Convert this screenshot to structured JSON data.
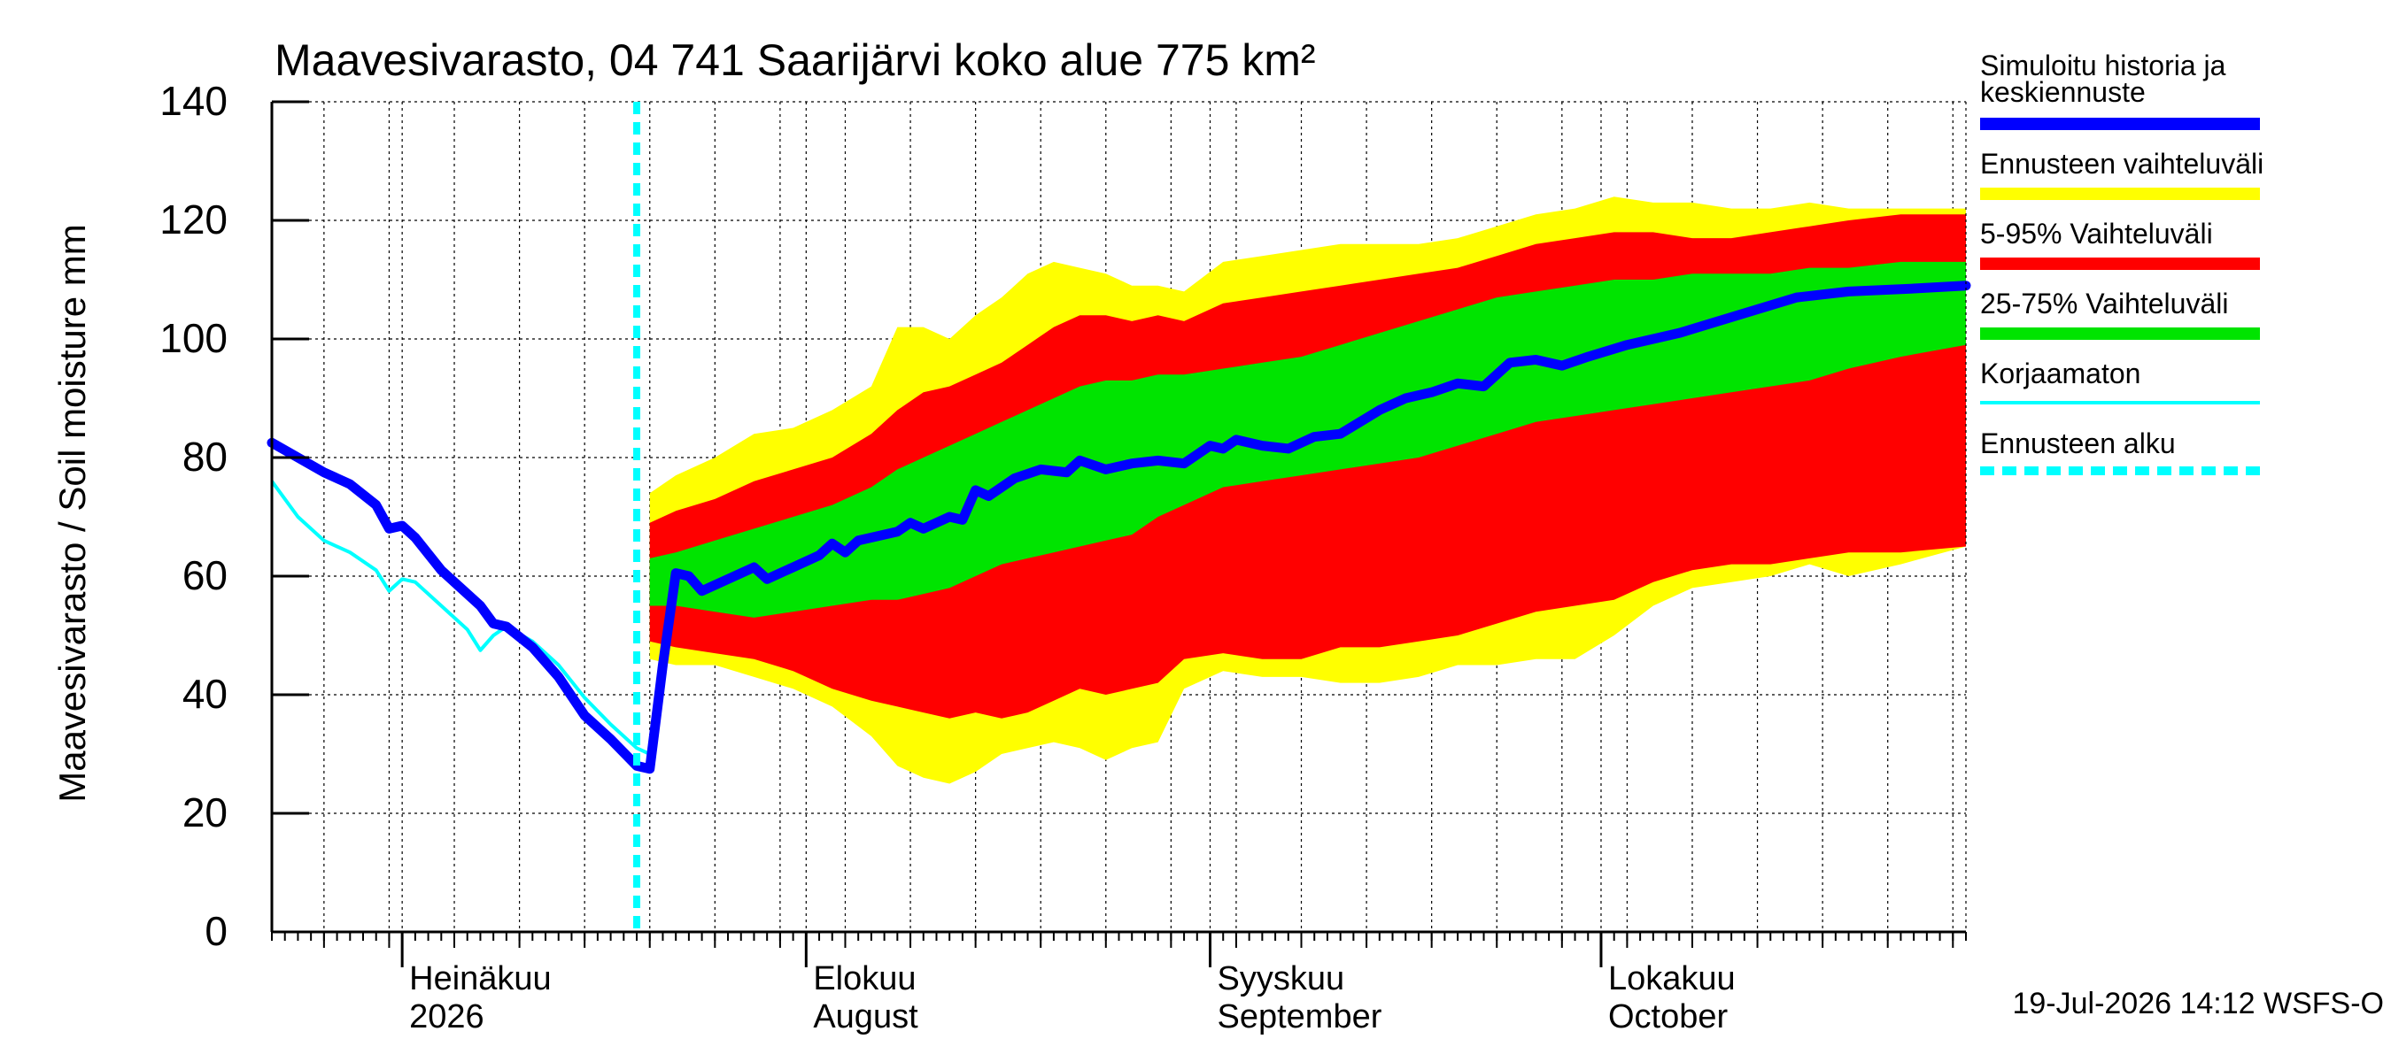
{
  "chart_data": {
    "type": "area",
    "title": "Maavesivarasto, 04 741 Saarijärvi koko alue 775 km²",
    "ylabel": "Maavesivarasto / Soil moisture   mm",
    "ylim": [
      0,
      140
    ],
    "yticks": [
      0,
      20,
      40,
      60,
      80,
      100,
      120,
      140
    ],
    "xlim": [
      "2026-06-21",
      "2026-10-29"
    ],
    "grid": true,
    "forecast_start": "2026-07-19",
    "month_labels": [
      {
        "date": "2026-07-01",
        "line1": "Heinäkuu",
        "line2": "2026"
      },
      {
        "date": "2026-08-01",
        "line1": "Elokuu",
        "line2": "August"
      },
      {
        "date": "2026-09-01",
        "line1": "Syyskuu",
        "line2": "September"
      },
      {
        "date": "2026-10-01",
        "line1": "Lokakuu",
        "line2": "October"
      }
    ],
    "footer": "19-Jul-2026 14:12 WSFS-O",
    "legend": {
      "placement": "right",
      "items": [
        {
          "label": "Simuloitu historia ja keskiennuste",
          "color": "#0000ff",
          "style": "thick"
        },
        {
          "label": "Ennusteen vaihteluväli",
          "color": "#ffff00",
          "style": "thick"
        },
        {
          "label": "5-95% Vaihteluväli",
          "color": "#ff0000",
          "style": "thick"
        },
        {
          "label": "25-75% Vaihteluväli",
          "color": "#00e400",
          "style": "thick"
        },
        {
          "label": "Korjaamaton",
          "color": "#00ffff",
          "style": "thin"
        },
        {
          "label": "Ennusteen alku",
          "color": "#00ffff",
          "style": "dashed"
        }
      ]
    },
    "series": [
      {
        "name": "Simuloitu historia ja keskiennuste",
        "color": "#0000ff",
        "points": [
          [
            "2026-06-21",
            82.5
          ],
          [
            "2026-06-23",
            80
          ],
          [
            "2026-06-25",
            77.5
          ],
          [
            "2026-06-27",
            75.5
          ],
          [
            "2026-06-29",
            72
          ],
          [
            "2026-06-30",
            68
          ],
          [
            "2026-07-01",
            68.5
          ],
          [
            "2026-07-02",
            66.5
          ],
          [
            "2026-07-04",
            61
          ],
          [
            "2026-07-07",
            55
          ],
          [
            "2026-07-08",
            52
          ],
          [
            "2026-07-09",
            51.5
          ],
          [
            "2026-07-11",
            48
          ],
          [
            "2026-07-13",
            43
          ],
          [
            "2026-07-15",
            36.5
          ],
          [
            "2026-07-17",
            32.5
          ],
          [
            "2026-07-19",
            28
          ],
          [
            "2026-07-20",
            27.5
          ],
          [
            "2026-07-21",
            45
          ],
          [
            "2026-07-22",
            60.5
          ],
          [
            "2026-07-23",
            60
          ],
          [
            "2026-07-24",
            57.5
          ],
          [
            "2026-07-26",
            59.5
          ],
          [
            "2026-07-28",
            61.5
          ],
          [
            "2026-07-29",
            59.5
          ],
          [
            "2026-07-31",
            61.5
          ],
          [
            "2026-08-02",
            63.5
          ],
          [
            "2026-08-03",
            65.5
          ],
          [
            "2026-08-04",
            64
          ],
          [
            "2026-08-05",
            66
          ],
          [
            "2026-08-08",
            67.5
          ],
          [
            "2026-08-09",
            69
          ],
          [
            "2026-08-10",
            68
          ],
          [
            "2026-08-12",
            70
          ],
          [
            "2026-08-13",
            69.5
          ],
          [
            "2026-08-14",
            74.5
          ],
          [
            "2026-08-15",
            73.5
          ],
          [
            "2026-08-17",
            76.5
          ],
          [
            "2026-08-19",
            78
          ],
          [
            "2026-08-21",
            77.5
          ],
          [
            "2026-08-22",
            79.5
          ],
          [
            "2026-08-24",
            78
          ],
          [
            "2026-08-26",
            79
          ],
          [
            "2026-08-28",
            79.5
          ],
          [
            "2026-08-30",
            79
          ],
          [
            "2026-09-01",
            82
          ],
          [
            "2026-09-02",
            81.5
          ],
          [
            "2026-09-03",
            83
          ],
          [
            "2026-09-05",
            82
          ],
          [
            "2026-09-07",
            81.5
          ],
          [
            "2026-09-09",
            83.5
          ],
          [
            "2026-09-11",
            84
          ],
          [
            "2026-09-14",
            88
          ],
          [
            "2026-09-16",
            90
          ],
          [
            "2026-09-18",
            91
          ],
          [
            "2026-09-20",
            92.5
          ],
          [
            "2026-09-22",
            92
          ],
          [
            "2026-09-24",
            96
          ],
          [
            "2026-09-26",
            96.5
          ],
          [
            "2026-09-28",
            95.5
          ],
          [
            "2026-09-30",
            97
          ],
          [
            "2026-10-03",
            99
          ],
          [
            "2026-10-05",
            100
          ],
          [
            "2026-10-07",
            101
          ],
          [
            "2026-10-10",
            103
          ],
          [
            "2026-10-13",
            105
          ],
          [
            "2026-10-16",
            107
          ],
          [
            "2026-10-20",
            108
          ],
          [
            "2026-10-25",
            108.5
          ],
          [
            "2026-10-29",
            109
          ]
        ]
      },
      {
        "name": "Korjaamaton",
        "color": "#00ffff",
        "points": [
          [
            "2026-06-21",
            76
          ],
          [
            "2026-06-23",
            70
          ],
          [
            "2026-06-25",
            66
          ],
          [
            "2026-06-27",
            64
          ],
          [
            "2026-06-29",
            61
          ],
          [
            "2026-06-30",
            57.5
          ],
          [
            "2026-07-01",
            59.5
          ],
          [
            "2026-07-02",
            59
          ],
          [
            "2026-07-04",
            55
          ],
          [
            "2026-07-06",
            51
          ],
          [
            "2026-07-07",
            47.5
          ],
          [
            "2026-07-08",
            50
          ],
          [
            "2026-07-09",
            51.5
          ],
          [
            "2026-07-11",
            49
          ],
          [
            "2026-07-13",
            45
          ],
          [
            "2026-07-15",
            39.5
          ],
          [
            "2026-07-17",
            35
          ],
          [
            "2026-07-19",
            31
          ],
          [
            "2026-07-20",
            30
          ]
        ]
      }
    ],
    "bands": [
      {
        "name": "Ennusteen vaihteluväli",
        "color": "#ffff00",
        "points": [
          [
            "2026-07-20",
            74,
            46
          ],
          [
            "2026-07-22",
            77,
            45
          ],
          [
            "2026-07-25",
            80,
            45
          ],
          [
            "2026-07-28",
            84,
            43
          ],
          [
            "2026-07-31",
            85,
            41
          ],
          [
            "2026-08-03",
            88,
            38
          ],
          [
            "2026-08-06",
            92,
            33
          ],
          [
            "2026-08-08",
            102,
            28
          ],
          [
            "2026-08-10",
            102,
            26
          ],
          [
            "2026-08-12",
            100,
            25
          ],
          [
            "2026-08-14",
            104,
            27
          ],
          [
            "2026-08-16",
            107,
            30
          ],
          [
            "2026-08-18",
            111,
            31
          ],
          [
            "2026-08-20",
            113,
            32
          ],
          [
            "2026-08-22",
            112,
            31
          ],
          [
            "2026-08-24",
            111,
            29
          ],
          [
            "2026-08-26",
            109,
            31
          ],
          [
            "2026-08-28",
            109,
            32
          ],
          [
            "2026-08-30",
            108,
            41
          ],
          [
            "2026-09-02",
            113,
            44
          ],
          [
            "2026-09-05",
            114,
            43
          ],
          [
            "2026-09-08",
            115,
            43
          ],
          [
            "2026-09-11",
            116,
            42
          ],
          [
            "2026-09-14",
            116,
            42
          ],
          [
            "2026-09-17",
            116,
            43
          ],
          [
            "2026-09-20",
            117,
            45
          ],
          [
            "2026-09-23",
            119,
            45
          ],
          [
            "2026-09-26",
            121,
            46
          ],
          [
            "2026-09-29",
            122,
            46
          ],
          [
            "2026-10-02",
            124,
            50
          ],
          [
            "2026-10-05",
            123,
            55
          ],
          [
            "2026-10-08",
            123,
            58
          ],
          [
            "2026-10-11",
            122,
            59
          ],
          [
            "2026-10-14",
            122,
            60
          ],
          [
            "2026-10-17",
            123,
            62
          ],
          [
            "2026-10-20",
            122,
            60
          ],
          [
            "2026-10-24",
            122,
            62
          ],
          [
            "2026-10-29",
            122,
            65
          ]
        ]
      },
      {
        "name": "5-95% Vaihteluväli",
        "color": "#ff0000",
        "points": [
          [
            "2026-07-20",
            69,
            49
          ],
          [
            "2026-07-22",
            71,
            48
          ],
          [
            "2026-07-25",
            73,
            47
          ],
          [
            "2026-07-28",
            76,
            46
          ],
          [
            "2026-07-31",
            78,
            44
          ],
          [
            "2026-08-03",
            80,
            41
          ],
          [
            "2026-08-06",
            84,
            39
          ],
          [
            "2026-08-08",
            88,
            38
          ],
          [
            "2026-08-10",
            91,
            37
          ],
          [
            "2026-08-12",
            92,
            36
          ],
          [
            "2026-08-14",
            94,
            37
          ],
          [
            "2026-08-16",
            96,
            36
          ],
          [
            "2026-08-18",
            99,
            37
          ],
          [
            "2026-08-20",
            102,
            39
          ],
          [
            "2026-08-22",
            104,
            41
          ],
          [
            "2026-08-24",
            104,
            40
          ],
          [
            "2026-08-26",
            103,
            41
          ],
          [
            "2026-08-28",
            104,
            42
          ],
          [
            "2026-08-30",
            103,
            46
          ],
          [
            "2026-09-02",
            106,
            47
          ],
          [
            "2026-09-05",
            107,
            46
          ],
          [
            "2026-09-08",
            108,
            46
          ],
          [
            "2026-09-11",
            109,
            48
          ],
          [
            "2026-09-14",
            110,
            48
          ],
          [
            "2026-09-17",
            111,
            49
          ],
          [
            "2026-09-20",
            112,
            50
          ],
          [
            "2026-09-23",
            114,
            52
          ],
          [
            "2026-09-26",
            116,
            54
          ],
          [
            "2026-09-29",
            117,
            55
          ],
          [
            "2026-10-02",
            118,
            56
          ],
          [
            "2026-10-05",
            118,
            59
          ],
          [
            "2026-10-08",
            117,
            61
          ],
          [
            "2026-10-11",
            117,
            62
          ],
          [
            "2026-10-14",
            118,
            62
          ],
          [
            "2026-10-17",
            119,
            63
          ],
          [
            "2026-10-20",
            120,
            64
          ],
          [
            "2026-10-24",
            121,
            64
          ],
          [
            "2026-10-29",
            121,
            65
          ]
        ]
      },
      {
        "name": "25-75% Vaihteluväli",
        "color": "#00e400",
        "points": [
          [
            "2026-07-20",
            63,
            55
          ],
          [
            "2026-07-22",
            64,
            55
          ],
          [
            "2026-07-25",
            66,
            54
          ],
          [
            "2026-07-28",
            68,
            53
          ],
          [
            "2026-07-31",
            70,
            54
          ],
          [
            "2026-08-03",
            72,
            55
          ],
          [
            "2026-08-06",
            75,
            56
          ],
          [
            "2026-08-08",
            78,
            56
          ],
          [
            "2026-08-10",
            80,
            57
          ],
          [
            "2026-08-12",
            82,
            58
          ],
          [
            "2026-08-14",
            84,
            60
          ],
          [
            "2026-08-16",
            86,
            62
          ],
          [
            "2026-08-18",
            88,
            63
          ],
          [
            "2026-08-20",
            90,
            64
          ],
          [
            "2026-08-22",
            92,
            65
          ],
          [
            "2026-08-24",
            93,
            66
          ],
          [
            "2026-08-26",
            93,
            67
          ],
          [
            "2026-08-28",
            94,
            70
          ],
          [
            "2026-08-30",
            94,
            72
          ],
          [
            "2026-09-02",
            95,
            75
          ],
          [
            "2026-09-05",
            96,
            76
          ],
          [
            "2026-09-08",
            97,
            77
          ],
          [
            "2026-09-11",
            99,
            78
          ],
          [
            "2026-09-14",
            101,
            79
          ],
          [
            "2026-09-17",
            103,
            80
          ],
          [
            "2026-09-20",
            105,
            82
          ],
          [
            "2026-09-23",
            107,
            84
          ],
          [
            "2026-09-26",
            108,
            86
          ],
          [
            "2026-09-29",
            109,
            87
          ],
          [
            "2026-10-02",
            110,
            88
          ],
          [
            "2026-10-05",
            110,
            89
          ],
          [
            "2026-10-08",
            111,
            90
          ],
          [
            "2026-10-11",
            111,
            91
          ],
          [
            "2026-10-14",
            111,
            92
          ],
          [
            "2026-10-17",
            112,
            93
          ],
          [
            "2026-10-20",
            112,
            95
          ],
          [
            "2026-10-24",
            113,
            97
          ],
          [
            "2026-10-29",
            113,
            99
          ]
        ]
      }
    ]
  }
}
